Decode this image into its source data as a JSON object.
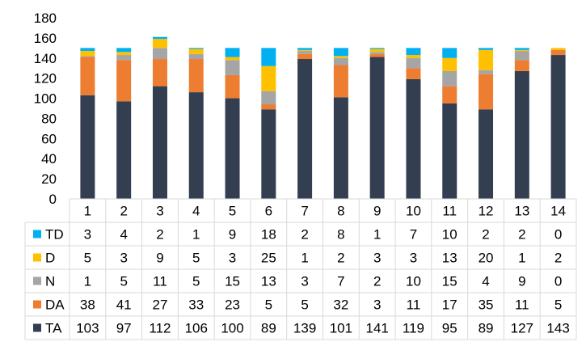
{
  "chart_data": {
    "type": "bar",
    "stacked": true,
    "categories": [
      "1",
      "2",
      "3",
      "4",
      "5",
      "6",
      "7",
      "8",
      "9",
      "10",
      "11",
      "12",
      "13",
      "14"
    ],
    "y_ticks": [
      "0",
      "20",
      "40",
      "60",
      "80",
      "100",
      "120",
      "140",
      "160",
      "180"
    ],
    "ylim": [
      0,
      180
    ],
    "grid": false,
    "legend_placement": "data-table",
    "series": [
      {
        "name": "TA",
        "color": "#333F50",
        "values": [
          103,
          97,
          112,
          106,
          100,
          89,
          139,
          101,
          141,
          119,
          95,
          89,
          127,
          143
        ]
      },
      {
        "name": "DA",
        "color": "#ED7D31",
        "values": [
          38,
          41,
          27,
          33,
          23,
          5,
          5,
          32,
          3,
          11,
          17,
          35,
          11,
          5
        ]
      },
      {
        "name": "N",
        "color": "#A5A5A5",
        "values": [
          1,
          5,
          11,
          5,
          15,
          13,
          3,
          7,
          2,
          10,
          15,
          4,
          9,
          0
        ]
      },
      {
        "name": "D",
        "color": "#FFC000",
        "values": [
          5,
          3,
          9,
          5,
          3,
          25,
          1,
          2,
          3,
          3,
          13,
          20,
          1,
          2
        ]
      },
      {
        "name": "TD",
        "color": "#00B0F0",
        "values": [
          3,
          4,
          2,
          1,
          9,
          18,
          2,
          8,
          1,
          7,
          10,
          2,
          2,
          0
        ]
      }
    ],
    "table_row_order": [
      "TD",
      "D",
      "N",
      "DA",
      "TA"
    ]
  }
}
